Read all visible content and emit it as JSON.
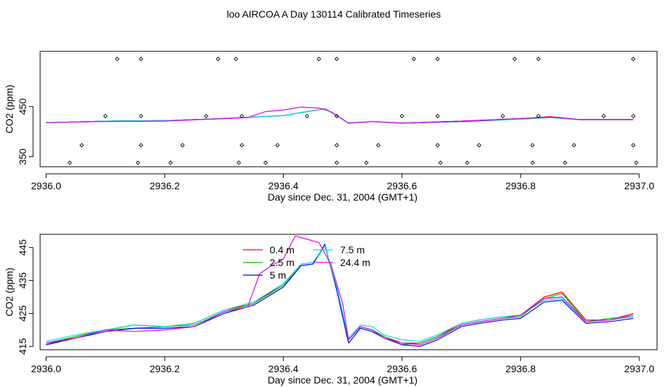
{
  "title": "loo AIRCOA A  Day 130114  Calibrated Timeseries",
  "colors": {
    "0.4 m": "#ff0000",
    "2.5 m": "#00c000",
    "5 m": "#0000ff",
    "7.5 m": "#00e0e0",
    "24.4 m": "#e000e0",
    "markers": "#000000",
    "axis": "#000000",
    "background": "#ffffff"
  },
  "chart_data": [
    {
      "type": "line",
      "xlabel": "Day since Dec. 31, 2004 (GMT+1)",
      "ylabel": "CO2 (ppm)",
      "xlim": [
        2935.99,
        2937.03
      ],
      "ylim": [
        330,
        560
      ],
      "x_ticks": [
        2936.0,
        2936.2,
        2936.4,
        2936.6,
        2936.8,
        2937.0
      ],
      "x_tick_labels": [
        "2936.0",
        "2936.2",
        "2936.4",
        "2936.6",
        "2936.8",
        "2937.0"
      ],
      "y_ticks": [
        350,
        450
      ],
      "y_tick_labels": [
        "350",
        "450"
      ],
      "grid": false,
      "series": [
        {
          "id": "0.4 m",
          "x": [
            2936.0,
            2936.1,
            2936.2,
            2936.3,
            2936.4,
            2936.44,
            2936.47,
            2936.49,
            2936.51,
            2936.55,
            2936.6,
            2936.7,
            2936.8,
            2936.85,
            2936.9,
            2936.99
          ],
          "values": [
            418,
            421,
            422,
            426,
            432,
            440,
            446,
            432,
            417,
            420,
            417,
            421,
            426,
            430,
            424,
            424
          ]
        },
        {
          "id": "2.5 m",
          "x": [
            2936.0,
            2936.1,
            2936.2,
            2936.3,
            2936.4,
            2936.44,
            2936.47,
            2936.49,
            2936.51,
            2936.55,
            2936.6,
            2936.7,
            2936.8,
            2936.85,
            2936.9,
            2936.99
          ],
          "values": [
            418,
            421,
            422,
            426,
            432,
            440,
            446,
            432,
            417,
            420,
            417,
            421,
            426,
            429,
            424,
            424
          ]
        },
        {
          "id": "5 m",
          "x": [
            2936.0,
            2936.1,
            2936.2,
            2936.3,
            2936.4,
            2936.44,
            2936.47,
            2936.49,
            2936.51,
            2936.55,
            2936.6,
            2936.7,
            2936.8,
            2936.85,
            2936.9,
            2936.99
          ],
          "values": [
            418,
            421,
            422,
            426,
            432,
            440,
            446,
            432,
            417,
            420,
            417,
            420,
            425,
            428,
            424,
            424
          ]
        },
        {
          "id": "7.5 m",
          "x": [
            2936.0,
            2936.1,
            2936.2,
            2936.3,
            2936.4,
            2936.44,
            2936.47,
            2936.49,
            2936.51,
            2936.55,
            2936.6,
            2936.7,
            2936.8,
            2936.85,
            2936.9,
            2936.99
          ],
          "values": [
            418,
            421,
            422,
            426,
            432,
            440,
            446,
            432,
            417,
            420,
            417,
            421,
            425,
            428,
            424,
            424
          ]
        },
        {
          "id": "24.4 m",
          "x": [
            2936.0,
            2936.1,
            2936.2,
            2936.3,
            2936.34,
            2936.37,
            2936.4,
            2936.43,
            2936.46,
            2936.48,
            2936.51,
            2936.55,
            2936.6,
            2936.7,
            2936.8,
            2936.85,
            2936.9,
            2936.99
          ],
          "values": [
            418,
            420,
            421,
            426,
            428,
            440,
            443,
            449,
            447,
            440,
            417,
            420,
            417,
            421,
            426,
            429,
            424,
            424
          ]
        }
      ],
      "markers": [
        {
          "x": 2936.12,
          "y": 545
        },
        {
          "x": 2936.16,
          "y": 545
        },
        {
          "x": 2936.29,
          "y": 545
        },
        {
          "x": 2936.32,
          "y": 545
        },
        {
          "x": 2936.46,
          "y": 545
        },
        {
          "x": 2936.49,
          "y": 545
        },
        {
          "x": 2936.62,
          "y": 545
        },
        {
          "x": 2936.66,
          "y": 545
        },
        {
          "x": 2936.79,
          "y": 545
        },
        {
          "x": 2936.83,
          "y": 545
        },
        {
          "x": 2936.99,
          "y": 545
        },
        {
          "x": 2936.1,
          "y": 431
        },
        {
          "x": 2936.16,
          "y": 431
        },
        {
          "x": 2936.27,
          "y": 431
        },
        {
          "x": 2936.33,
          "y": 431
        },
        {
          "x": 2936.44,
          "y": 431
        },
        {
          "x": 2936.49,
          "y": 431
        },
        {
          "x": 2936.6,
          "y": 431
        },
        {
          "x": 2936.66,
          "y": 431
        },
        {
          "x": 2936.77,
          "y": 431
        },
        {
          "x": 2936.83,
          "y": 431
        },
        {
          "x": 2936.94,
          "y": 431
        },
        {
          "x": 2936.99,
          "y": 431
        },
        {
          "x": 2936.06,
          "y": 373
        },
        {
          "x": 2936.16,
          "y": 373
        },
        {
          "x": 2936.23,
          "y": 373
        },
        {
          "x": 2936.33,
          "y": 373
        },
        {
          "x": 2936.39,
          "y": 373
        },
        {
          "x": 2936.49,
          "y": 373
        },
        {
          "x": 2936.56,
          "y": 373
        },
        {
          "x": 2936.66,
          "y": 373
        },
        {
          "x": 2936.73,
          "y": 373
        },
        {
          "x": 2936.82,
          "y": 373
        },
        {
          "x": 2936.89,
          "y": 373
        },
        {
          "x": 2936.99,
          "y": 373
        },
        {
          "x": 2936.04,
          "y": 338
        },
        {
          "x": 2936.155,
          "y": 338
        },
        {
          "x": 2936.21,
          "y": 338
        },
        {
          "x": 2936.325,
          "y": 338
        },
        {
          "x": 2936.37,
          "y": 338
        },
        {
          "x": 2936.49,
          "y": 338
        },
        {
          "x": 2936.54,
          "y": 338
        },
        {
          "x": 2936.665,
          "y": 338
        },
        {
          "x": 2936.71,
          "y": 338
        },
        {
          "x": 2936.82,
          "y": 338
        },
        {
          "x": 2936.875,
          "y": 338
        },
        {
          "x": 2936.995,
          "y": 338
        }
      ]
    },
    {
      "type": "line",
      "xlabel": "Day since Dec. 31, 2004 (GMT+1)",
      "ylabel": "CO2 (ppm)",
      "xlim": [
        2935.99,
        2937.03
      ],
      "ylim": [
        414,
        449
      ],
      "x_ticks": [
        2936.0,
        2936.2,
        2936.4,
        2936.6,
        2936.8,
        2937.0
      ],
      "x_tick_labels": [
        "2936.0",
        "2936.2",
        "2936.4",
        "2936.6",
        "2936.8",
        "2937.0"
      ],
      "y_ticks": [
        415,
        425,
        435,
        445
      ],
      "y_tick_labels": [
        "415",
        "425",
        "435",
        "445"
      ],
      "grid": false,
      "legend": {
        "placement": "top-left",
        "entries": [
          "0.4 m",
          "2.5 m",
          "5 m",
          "7.5 m",
          "24.4 m"
        ]
      },
      "series": [
        {
          "name": "0.4 m",
          "x": [
            2936.0,
            2936.05,
            2936.1,
            2936.15,
            2936.2,
            2936.25,
            2936.3,
            2936.35,
            2936.4,
            2936.43,
            2936.45,
            2936.47,
            2936.49,
            2936.51,
            2936.53,
            2936.55,
            2936.57,
            2936.6,
            2936.63,
            2936.66,
            2936.7,
            2936.73,
            2936.77,
            2936.8,
            2936.84,
            2936.87,
            2936.91,
            2936.95,
            2936.99
          ],
          "values": [
            415.5,
            418,
            420,
            421.5,
            421,
            422,
            426,
            428,
            434,
            440,
            440.5,
            445.5,
            433,
            417,
            421,
            420,
            418,
            416,
            416,
            418,
            422,
            423,
            424,
            424.5,
            430,
            431.5,
            423,
            423,
            425
          ]
        },
        {
          "name": "2.5 m",
          "x": [
            2936.0,
            2936.05,
            2936.1,
            2936.15,
            2936.2,
            2936.25,
            2936.3,
            2936.35,
            2936.4,
            2936.43,
            2936.45,
            2936.47,
            2936.49,
            2936.51,
            2936.53,
            2936.55,
            2936.57,
            2936.6,
            2936.63,
            2936.66,
            2936.7,
            2936.73,
            2936.77,
            2936.8,
            2936.84,
            2936.87,
            2936.91,
            2936.95,
            2936.99
          ],
          "values": [
            416,
            418,
            420,
            420.5,
            421,
            421.5,
            425.5,
            428,
            433.5,
            439.5,
            440,
            445.5,
            432.5,
            417,
            421,
            420,
            418,
            415.5,
            416,
            418,
            421.5,
            422.5,
            423.5,
            424,
            429.5,
            431,
            422.5,
            423.5,
            424
          ]
        },
        {
          "name": "5 m",
          "x": [
            2936.0,
            2936.05,
            2936.1,
            2936.15,
            2936.2,
            2936.25,
            2936.3,
            2936.35,
            2936.4,
            2936.43,
            2936.45,
            2936.47,
            2936.49,
            2936.51,
            2936.53,
            2936.55,
            2936.57,
            2936.6,
            2936.63,
            2936.66,
            2936.7,
            2936.73,
            2936.77,
            2936.8,
            2936.84,
            2936.87,
            2936.91,
            2936.95,
            2936.99
          ],
          "values": [
            415.5,
            417.5,
            419.5,
            420.5,
            420.5,
            421,
            425,
            427.5,
            433,
            439.5,
            440,
            446,
            432,
            416,
            420.5,
            419.5,
            417.5,
            415.5,
            415,
            417,
            421,
            422,
            423,
            423.5,
            428.5,
            429,
            422,
            422.5,
            423.5
          ]
        },
        {
          "name": "7.5 m",
          "x": [
            2936.0,
            2936.05,
            2936.1,
            2936.15,
            2936.2,
            2936.25,
            2936.3,
            2936.35,
            2936.4,
            2936.43,
            2936.45,
            2936.47,
            2936.49,
            2936.51,
            2936.53,
            2936.55,
            2936.57,
            2936.6,
            2936.63,
            2936.66,
            2936.7,
            2936.73,
            2936.77,
            2936.8,
            2936.84,
            2936.87,
            2936.91,
            2936.95,
            2936.99
          ],
          "values": [
            416.5,
            418.5,
            420,
            421.5,
            421,
            422,
            426,
            428.5,
            434,
            440,
            440.5,
            445.5,
            433,
            417.5,
            421.5,
            421,
            418.5,
            417,
            416.5,
            418.5,
            422,
            423,
            424,
            424.5,
            429,
            429.5,
            422.5,
            423,
            424
          ]
        },
        {
          "name": "24.4 m",
          "x": [
            2936.0,
            2936.05,
            2936.1,
            2936.15,
            2936.2,
            2936.25,
            2936.3,
            2936.34,
            2936.36,
            2936.38,
            2936.4,
            2936.42,
            2936.44,
            2936.46,
            2936.48,
            2936.5,
            2936.51,
            2936.53,
            2936.55,
            2936.57,
            2936.6,
            2936.63,
            2936.66,
            2936.7,
            2936.73,
            2936.77,
            2936.8,
            2936.84,
            2936.87,
            2936.91,
            2936.95,
            2936.99
          ],
          "values": [
            416,
            417.5,
            420,
            419.5,
            420,
            421,
            425.5,
            427,
            437,
            439.5,
            441.5,
            448.5,
            447.5,
            446.5,
            440,
            428,
            417,
            421,
            420,
            417.5,
            416,
            415.5,
            417.5,
            421.5,
            422.5,
            423.5,
            424.5,
            429.5,
            430,
            422.5,
            423,
            424.5
          ]
        }
      ]
    }
  ]
}
